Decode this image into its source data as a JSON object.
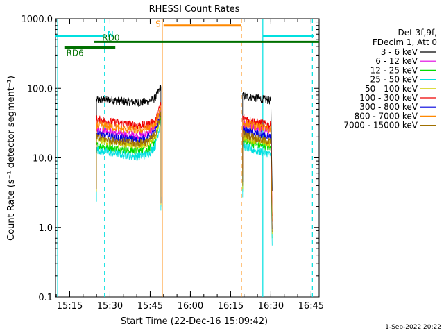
{
  "chart_data": {
    "type": "line",
    "title": "RHESSI Count Rates",
    "xlabel": "Start Time (22-Dec-16 15:09:42)",
    "ylabel": "Count Rate (s⁻¹ detector segment⁻¹)",
    "y_scale": "log",
    "xlim": [
      "15:09:42",
      "16:48:00"
    ],
    "ylim": [
      0.1,
      1000
    ],
    "x_tick_labels": [
      "15:15",
      "15:30",
      "15:45",
      "16:00",
      "16:15",
      "16:30",
      "16:45"
    ],
    "x_ticks": [
      "15:15",
      "15:30",
      "15:45",
      "16:00",
      "16:15",
      "16:30",
      "16:45"
    ],
    "y_tick_labels": [
      "0.1",
      "1.0",
      "10.0",
      "100.0",
      "1000.0"
    ],
    "y_ticks": [
      0.1,
      1,
      10,
      100,
      1000
    ],
    "grid": false,
    "legend": {
      "placement": "right",
      "header": [
        "Det 3f,9f,",
        "FDecim 1, Att 0"
      ]
    },
    "footer_date": "1-Sep-2022 20:22",
    "segments": [
      {
        "start": "15:25:00",
        "end": "15:49:00"
      },
      {
        "start": "16:19:30",
        "end": "16:30:30"
      }
    ],
    "series": [
      {
        "name": "3 - 6 keV",
        "color": "#000000",
        "points": [
          [
            "15:25",
            68
          ],
          [
            "15:30",
            68
          ],
          [
            "15:35",
            65
          ],
          [
            "15:40",
            62
          ],
          [
            "15:44",
            64
          ],
          [
            "15:47",
            72
          ],
          [
            "15:49",
            110
          ],
          [
            "16:19:30",
            78
          ],
          [
            "16:23",
            74
          ],
          [
            "16:27",
            70
          ],
          [
            "16:30",
            66
          ]
        ]
      },
      {
        "name": "6 - 12 keV",
        "color": "#e000e0",
        "points": [
          [
            "15:25",
            26
          ],
          [
            "15:30",
            24
          ],
          [
            "15:35",
            22
          ],
          [
            "15:40",
            21
          ],
          [
            "15:44",
            22
          ],
          [
            "15:47",
            28
          ],
          [
            "15:49",
            50
          ],
          [
            "16:19:30",
            30
          ],
          [
            "16:23",
            28
          ],
          [
            "16:27",
            26
          ],
          [
            "16:30",
            24
          ]
        ]
      },
      {
        "name": "12 - 25 keV",
        "color": "#00dd00",
        "points": [
          [
            "15:25",
            15
          ],
          [
            "15:30",
            14
          ],
          [
            "15:35",
            13
          ],
          [
            "15:40",
            12.5
          ],
          [
            "15:44",
            13
          ],
          [
            "15:47",
            18
          ],
          [
            "15:49",
            40
          ],
          [
            "16:19:30",
            18
          ],
          [
            "16:23",
            16
          ],
          [
            "16:27",
            15
          ],
          [
            "16:30",
            14
          ]
        ]
      },
      {
        "name": "25 - 50 keV",
        "color": "#00e0e0",
        "points": [
          [
            "15:25",
            13
          ],
          [
            "15:30",
            12
          ],
          [
            "15:35",
            11
          ],
          [
            "15:40",
            10.5
          ],
          [
            "15:44",
            11
          ],
          [
            "15:47",
            15
          ],
          [
            "15:49",
            35
          ],
          [
            "16:19:30",
            15
          ],
          [
            "16:23",
            13
          ],
          [
            "16:27",
            12
          ],
          [
            "16:30",
            11
          ]
        ]
      },
      {
        "name": "50 - 100 keV",
        "color": "#d0d000",
        "points": [
          [
            "15:25",
            18
          ],
          [
            "15:30",
            17
          ],
          [
            "15:35",
            16
          ],
          [
            "15:40",
            15
          ],
          [
            "15:44",
            16
          ],
          [
            "15:47",
            20
          ],
          [
            "15:49",
            42
          ],
          [
            "16:19:30",
            20
          ],
          [
            "16:23",
            18
          ],
          [
            "16:27",
            17
          ],
          [
            "16:30",
            16
          ]
        ]
      },
      {
        "name": "100 - 300 keV",
        "color": "#ee0000",
        "points": [
          [
            "15:25",
            36
          ],
          [
            "15:30",
            33
          ],
          [
            "15:35",
            31
          ],
          [
            "15:40",
            29
          ],
          [
            "15:44",
            30
          ],
          [
            "15:47",
            34
          ],
          [
            "15:49",
            60
          ],
          [
            "16:19:30",
            38
          ],
          [
            "16:23",
            34
          ],
          [
            "16:27",
            31
          ],
          [
            "16:30",
            29
          ]
        ]
      },
      {
        "name": "300 - 800 keV",
        "color": "#0000dd",
        "points": [
          [
            "15:25",
            22
          ],
          [
            "15:30",
            20
          ],
          [
            "15:35",
            19
          ],
          [
            "15:40",
            18
          ],
          [
            "15:44",
            19
          ],
          [
            "15:47",
            24
          ],
          [
            "15:49",
            45
          ],
          [
            "16:19:30",
            25
          ],
          [
            "16:23",
            23
          ],
          [
            "16:27",
            21
          ],
          [
            "16:30",
            19
          ]
        ]
      },
      {
        "name": "800 - 7000 keV",
        "color": "#ff8800",
        "points": [
          [
            "15:25",
            30
          ],
          [
            "15:30",
            28
          ],
          [
            "15:35",
            26
          ],
          [
            "15:40",
            25
          ],
          [
            "15:44",
            26
          ],
          [
            "15:47",
            30
          ],
          [
            "15:49",
            55
          ],
          [
            "16:19:30",
            32
          ],
          [
            "16:23",
            29
          ],
          [
            "16:27",
            27
          ],
          [
            "16:30",
            25
          ]
        ]
      },
      {
        "name": "7000 - 15000 keV",
        "color": "#a07000",
        "points": [
          [
            "15:25",
            20
          ],
          [
            "15:30",
            18
          ],
          [
            "15:35",
            17
          ],
          [
            "15:40",
            16
          ],
          [
            "15:44",
            17
          ],
          [
            "15:47",
            22
          ],
          [
            "15:49",
            44
          ],
          [
            "16:19:30",
            22
          ],
          [
            "16:23",
            20
          ],
          [
            "16:27",
            18
          ],
          [
            "16:30",
            17
          ]
        ]
      }
    ],
    "flag_bars": [
      {
        "label": "N",
        "color": "#00e0e0",
        "y": 567,
        "intervals": [
          [
            "15:09:42",
            "15:27:30"
          ],
          [
            "16:27:00",
            "16:46:00"
          ]
        ]
      },
      {
        "label": "S",
        "color": "#ff8800",
        "y": 800,
        "intervals": [
          [
            "15:50:00",
            "16:19:00"
          ]
        ]
      },
      {
        "label": "RD0",
        "color": "#007000",
        "y": 465,
        "intervals": [
          [
            "15:24:00",
            "16:48:00"
          ]
        ]
      },
      {
        "label": "RD6",
        "color": "#007000",
        "y": 385,
        "intervals": [
          [
            "15:13:00",
            "15:32:00"
          ]
        ]
      }
    ],
    "vertical_markers": [
      {
        "time": "15:10:30",
        "color": "#00e0e0",
        "style": "solid"
      },
      {
        "time": "15:28:00",
        "color": "#00e0e0",
        "style": "dashed"
      },
      {
        "time": "15:49:30",
        "color": "#ff8800",
        "style": "solid"
      },
      {
        "time": "16:19:00",
        "color": "#ff8800",
        "style": "dashed"
      },
      {
        "time": "16:27:00",
        "color": "#00e0e0",
        "style": "solid"
      },
      {
        "time": "16:45:30",
        "color": "#00e0e0",
        "style": "dashed"
      }
    ]
  }
}
